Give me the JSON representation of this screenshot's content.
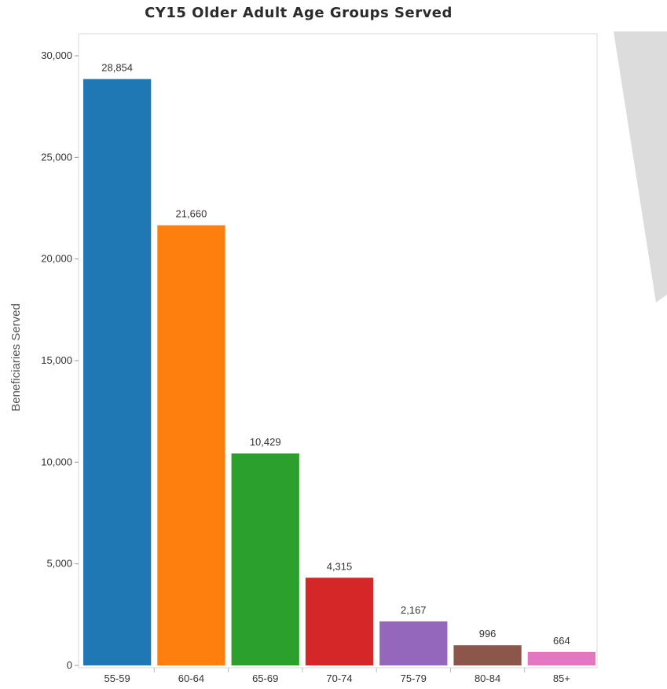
{
  "chart_data": {
    "type": "bar",
    "title": "CY15 Older Adult Age Groups Served",
    "xlabel": "",
    "ylabel": "Beneficiaries Served",
    "categories": [
      "55-59",
      "60-64",
      "65-69",
      "70-74",
      "75-79",
      "80-84",
      "85+"
    ],
    "values": [
      28854,
      21660,
      10429,
      4315,
      2167,
      996,
      664
    ],
    "value_labels": [
      "28,854",
      "21,660",
      "10,429",
      "4,315",
      "2,167",
      "996",
      "664"
    ],
    "colors": [
      "#1f77b4",
      "#ff7f0e",
      "#2ca02c",
      "#d62728",
      "#9467bd",
      "#8c564b",
      "#e377c2"
    ],
    "ylim": [
      0,
      30000
    ],
    "yticks": [
      0,
      5000,
      10000,
      15000,
      20000,
      25000,
      30000
    ],
    "ytick_labels": [
      "0",
      "5,000",
      "10,000",
      "15,000",
      "20,000",
      "25,000",
      "30,000"
    ],
    "grid": false,
    "legend": "none"
  }
}
